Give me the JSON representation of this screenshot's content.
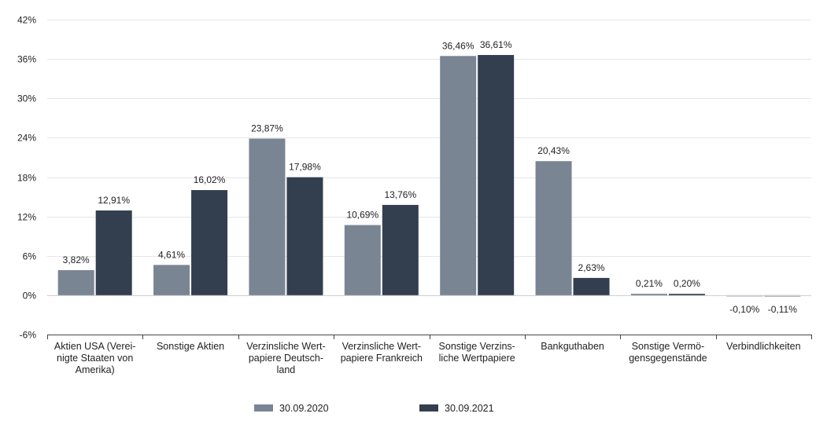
{
  "chart_data": {
    "type": "bar",
    "title": "",
    "xlabel": "",
    "ylabel": "",
    "ylim": [
      -6,
      42
    ],
    "yticks": [
      -6,
      0,
      6,
      12,
      18,
      24,
      30,
      36,
      42
    ],
    "ytick_labels": [
      "-6%",
      "0%",
      "6%",
      "12%",
      "18%",
      "24%",
      "30%",
      "36%",
      "42%"
    ],
    "grid": true,
    "legend_position": "bottom",
    "categories": [
      [
        "Aktien USA (Verei-",
        "nigte Staaten von",
        "Amerika)"
      ],
      [
        "Sonstige Aktien"
      ],
      [
        "Verzinsliche Wert-",
        "papiere Deutsch-",
        "land"
      ],
      [
        "Verzinsliche Wert-",
        "papiere Frankreich"
      ],
      [
        "Sonstige Verzins-",
        "liche Wertpapiere"
      ],
      [
        "Bankguthaben"
      ],
      [
        "Sonstige Vermö-",
        "gensgegenstände"
      ],
      [
        "Verbindlichkeiten"
      ]
    ],
    "series": [
      {
        "name": "30.09.2020",
        "color": "#7a8593",
        "values": [
          3.82,
          4.61,
          23.87,
          10.69,
          36.46,
          20.43,
          0.21,
          -0.1
        ],
        "labels": [
          "3,82%",
          "4,61%",
          "23,87%",
          "10,69%",
          "36,46%",
          "20,43%",
          "0,21%",
          "-0,10%"
        ]
      },
      {
        "name": "30.09.2021",
        "color": "#333f4f",
        "values": [
          12.91,
          16.02,
          17.98,
          13.76,
          36.61,
          2.63,
          0.2,
          -0.11
        ],
        "labels": [
          "12,91%",
          "16,02%",
          "17,98%",
          "13,76%",
          "36,61%",
          "2,63%",
          "0,20%",
          "-0,11%"
        ]
      }
    ]
  }
}
